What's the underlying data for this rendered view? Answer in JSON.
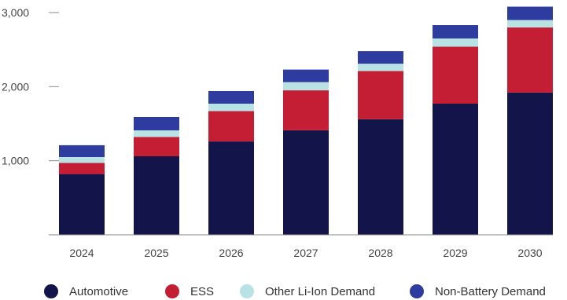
{
  "chart_data": {
    "type": "bar",
    "stacked": true,
    "categories": [
      "2024",
      "2025",
      "2026",
      "2027",
      "2028",
      "2029",
      "2030"
    ],
    "series": [
      {
        "name": "Automotive",
        "color": "#13144a",
        "values": [
          820,
          1060,
          1260,
          1410,
          1560,
          1770,
          1920
        ]
      },
      {
        "name": "ESS",
        "color": "#c41e34",
        "values": [
          150,
          260,
          410,
          540,
          650,
          770,
          880
        ]
      },
      {
        "name": "Other Li-Ion Demand",
        "color": "#b9e2e4",
        "values": [
          80,
          90,
          100,
          110,
          100,
          110,
          100
        ]
      },
      {
        "name": "Non-Battery Demand",
        "color": "#2e3c9f",
        "values": [
          160,
          180,
          170,
          170,
          170,
          180,
          180
        ]
      }
    ],
    "yticks": [
      {
        "value": 1000,
        "label": "1,000"
      },
      {
        "value": 2000,
        "label": "2,000"
      },
      {
        "value": 3000,
        "label": "3,000"
      }
    ],
    "ylim": [
      0,
      3000
    ],
    "grid": false,
    "legend_position": "bottom",
    "title": "",
    "xlabel": "",
    "ylabel": ""
  }
}
